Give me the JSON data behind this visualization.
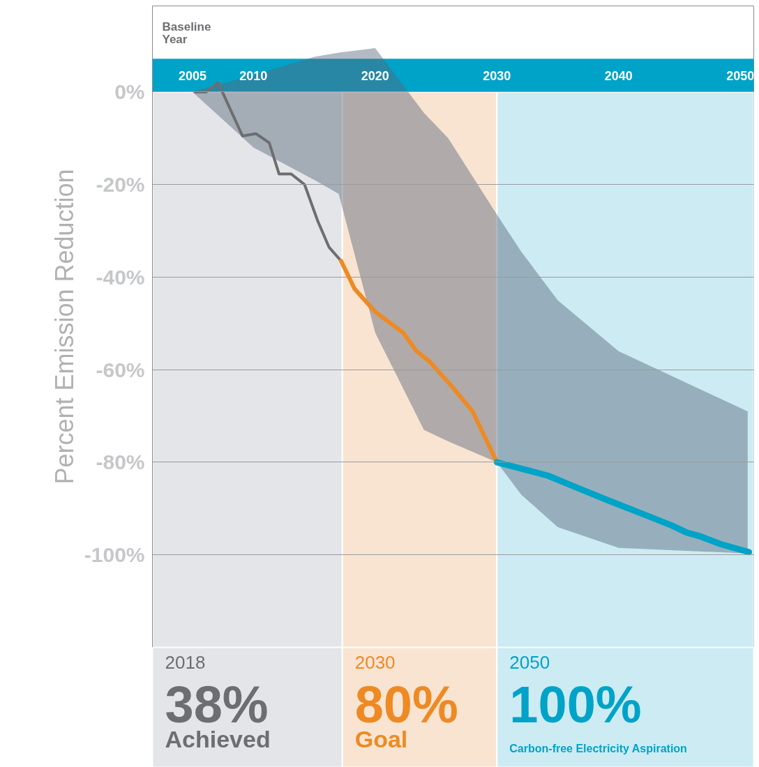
{
  "chart_data": {
    "type": "line",
    "ylabel": "Percent Emission Reduction",
    "xlim": [
      2001.7,
      2051.1
    ],
    "xticks": [
      2005,
      2010,
      2020,
      2030,
      2040,
      2050
    ],
    "ylim": [
      -120,
      18.6
    ],
    "yticks": [
      {
        "value": 0,
        "label": "0%"
      },
      {
        "value": -20,
        "label": "-20%"
      },
      {
        "value": -40,
        "label": "-40%"
      },
      {
        "value": -60,
        "label": "-60%"
      },
      {
        "value": -80,
        "label": "-80%"
      },
      {
        "value": -100,
        "label": "-100%"
      }
    ],
    "grid": "y",
    "legend": "bottom",
    "annotations": [
      "Baseline\nYear"
    ],
    "bands": [
      {
        "axis": "y",
        "from": 0,
        "to": 7.2,
        "color": "#00a3c8"
      },
      {
        "axis": "x",
        "from": 2001.7,
        "to": 2017.3,
        "color": "#e4e5e8"
      },
      {
        "axis": "x",
        "from": 2017.3,
        "to": 2030,
        "color": "#f9e4d2"
      },
      {
        "axis": "x",
        "from": 2030,
        "to": 2051.1,
        "color": "#cdebf3"
      }
    ],
    "series": [
      {
        "type": "line",
        "color": "#56657a",
        "x": [
          2005,
          2010,
          2015,
          2017,
          2020,
          2024,
          2026,
          2030,
          2032,
          2035,
          2040,
          2050.6
        ],
        "values": [
          null,
          null,
          null,
          null,
          null,
          null,
          null,
          null,
          null,
          null,
          null,
          null
        ],
        "upper": [
          0,
          3.7,
          7.6,
          8.5,
          9.5,
          -4.5,
          -10,
          -26.5,
          -34.5,
          -45,
          -56,
          -69
        ],
        "lower": [
          0,
          -12,
          -19,
          -22,
          -52,
          -73,
          -75.5,
          -80,
          -87,
          -94,
          -98.5,
          -99.7
        ]
      },
      {
        "name": "2018\n38%\nAchieved",
        "color": "#6d6e71",
        "x": [
          2005.2,
          2006.1,
          2007.1,
          2009.1,
          2010.2,
          2011.3,
          2012.1,
          2013.1,
          2014.2,
          2015.3,
          2016.2,
          2017.2
        ],
        "values": [
          0,
          0,
          2,
          -9.5,
          -9,
          -11,
          -17.7,
          -17.7,
          -20,
          -28,
          -33.5,
          -36.5
        ]
      },
      {
        "name": "2030\n80%\nGoal",
        "color": "#ee8a23",
        "x": [
          2017.2,
          2018.3,
          2020,
          2022.3,
          2023.4,
          2024.5,
          2026.3,
          2028,
          2030
        ],
        "values": [
          -36.5,
          -42.5,
          -47.5,
          -52,
          -56,
          -58.3,
          -63.6,
          -69,
          -80
        ]
      },
      {
        "name": "2050\n100%\nCarbon-free Electricity Aspiration",
        "color": "#00a3c8",
        "x": [
          2030,
          2032.5,
          2034.2,
          2036.5,
          2039.3,
          2042.2,
          2044.4,
          2045.6,
          2046.7,
          2048.4,
          2050.7
        ],
        "values": [
          -80,
          -81.7,
          -82.9,
          -85.4,
          -88.4,
          -91.4,
          -93.7,
          -95.2,
          -96,
          -97.7,
          -99.4
        ]
      }
    ]
  }
}
